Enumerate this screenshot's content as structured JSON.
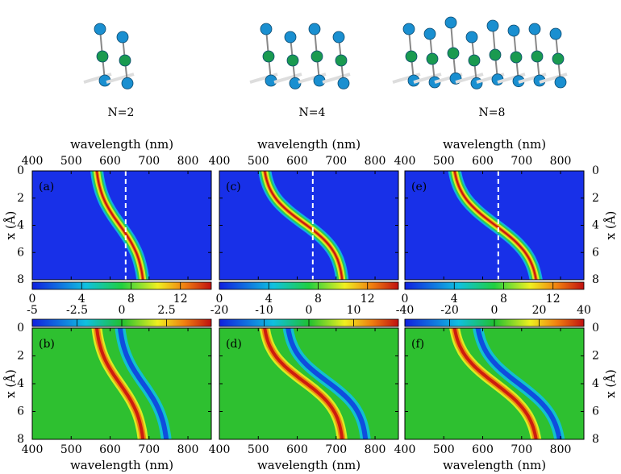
{
  "molecules": [
    {
      "label": "N=2"
    },
    {
      "label": "N=4"
    },
    {
      "label": "N=8"
    }
  ],
  "axes": {
    "xlabel": "wavelength (nm)",
    "ylabel": "x (Å)",
    "xlim": [
      400,
      860
    ],
    "xticks": [
      400,
      500,
      600,
      700,
      800
    ],
    "ylim": [
      0,
      8
    ],
    "yticks": [
      0,
      2,
      4,
      6,
      8
    ]
  },
  "panels": [
    {
      "label": "(a)",
      "clim": [
        0,
        14.5
      ],
      "cticks": [
        0,
        4,
        8,
        12
      ]
    },
    {
      "label": "(b)",
      "clim": [
        -5,
        5
      ],
      "cticks": [
        -5,
        -2.5,
        0,
        2.5
      ]
    },
    {
      "label": "(c)",
      "clim": [
        0,
        14.5
      ],
      "cticks": [
        0,
        4,
        8,
        12
      ]
    },
    {
      "label": "(d)",
      "clim": [
        -20,
        20
      ],
      "cticks": [
        -20,
        -10,
        0,
        10
      ]
    },
    {
      "label": "(e)",
      "clim": [
        0,
        14.5
      ],
      "cticks": [
        0,
        4,
        8,
        12
      ]
    },
    {
      "label": "(f)",
      "clim": [
        -40,
        40
      ],
      "cticks": [
        -40,
        -20,
        0,
        20,
        40
      ]
    }
  ]
}
